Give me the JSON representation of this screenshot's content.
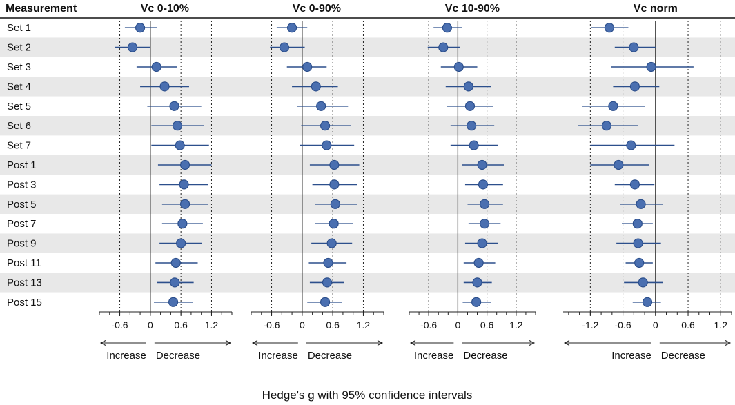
{
  "chart_data": {
    "type": "forest",
    "header_label": "Measurement",
    "rows": [
      "Set 1",
      "Set 2",
      "Set 3",
      "Set 4",
      "Set 5",
      "Set 6",
      "Set 7",
      "Post 1",
      "Post 3",
      "Post 5",
      "Post 7",
      "Post 9",
      "Post 11",
      "Post 13",
      "Post 15"
    ],
    "xlabel": "Hedge's g with 95% confidence intervals",
    "direction_labels": {
      "left": "Increase",
      "right": "Decrease"
    },
    "colors": {
      "point": "#4a6fb0",
      "point_edge": "#2c4f8c",
      "ci": "#2c4f8c",
      "band": "#e8e8e8"
    },
    "panels": [
      {
        "title": "Vc 0-10%",
        "xlim": [
          -1.0,
          1.6
        ],
        "ticks": [
          -0.6,
          0,
          0.6,
          1.2
        ],
        "tick_labels": [
          "-0.6",
          "0",
          "0.6",
          "1.2"
        ],
        "dotted_lines": [
          -0.6,
          0.6,
          1.2
        ],
        "points": [
          {
            "g": -0.2,
            "lo": -0.5,
            "hi": 0.13
          },
          {
            "g": -0.35,
            "lo": -0.7,
            "hi": 0.0
          },
          {
            "g": 0.12,
            "lo": -0.27,
            "hi": 0.52
          },
          {
            "g": 0.28,
            "lo": -0.2,
            "hi": 0.76
          },
          {
            "g": 0.47,
            "lo": -0.06,
            "hi": 1.0
          },
          {
            "g": 0.53,
            "lo": 0.02,
            "hi": 1.05
          },
          {
            "g": 0.58,
            "lo": 0.02,
            "hi": 1.15
          },
          {
            "g": 0.68,
            "lo": 0.15,
            "hi": 1.2
          },
          {
            "g": 0.66,
            "lo": 0.18,
            "hi": 1.13
          },
          {
            "g": 0.68,
            "lo": 0.23,
            "hi": 1.14
          },
          {
            "g": 0.63,
            "lo": 0.23,
            "hi": 1.03
          },
          {
            "g": 0.6,
            "lo": 0.18,
            "hi": 1.01
          },
          {
            "g": 0.5,
            "lo": 0.1,
            "hi": 0.93
          },
          {
            "g": 0.48,
            "lo": 0.13,
            "hi": 0.85
          },
          {
            "g": 0.45,
            "lo": 0.07,
            "hi": 0.83
          }
        ]
      },
      {
        "title": "Vc 0-90%",
        "xlim": [
          -1.0,
          1.6
        ],
        "ticks": [
          -0.6,
          0,
          0.6,
          1.2
        ],
        "tick_labels": [
          "-0.6",
          "0",
          "0.6",
          "1.2"
        ],
        "dotted_lines": [
          -0.6,
          0.6,
          1.2
        ],
        "points": [
          {
            "g": -0.2,
            "lo": -0.5,
            "hi": 0.1
          },
          {
            "g": -0.35,
            "lo": -0.63,
            "hi": 0.05
          },
          {
            "g": 0.1,
            "lo": -0.3,
            "hi": 0.48
          },
          {
            "g": 0.27,
            "lo": -0.2,
            "hi": 0.7
          },
          {
            "g": 0.37,
            "lo": -0.1,
            "hi": 0.9
          },
          {
            "g": 0.45,
            "lo": -0.02,
            "hi": 0.95
          },
          {
            "g": 0.48,
            "lo": -0.05,
            "hi": 1.02
          },
          {
            "g": 0.63,
            "lo": 0.15,
            "hi": 1.12
          },
          {
            "g": 0.63,
            "lo": 0.2,
            "hi": 1.08
          },
          {
            "g": 0.65,
            "lo": 0.25,
            "hi": 1.08
          },
          {
            "g": 0.62,
            "lo": 0.25,
            "hi": 1.0
          },
          {
            "g": 0.58,
            "lo": 0.18,
            "hi": 0.98
          },
          {
            "g": 0.51,
            "lo": 0.13,
            "hi": 0.87
          },
          {
            "g": 0.49,
            "lo": 0.15,
            "hi": 0.82
          },
          {
            "g": 0.45,
            "lo": 0.1,
            "hi": 0.78
          }
        ]
      },
      {
        "title": "Vc 10-90%",
        "xlim": [
          -1.0,
          1.6
        ],
        "ticks": [
          -0.6,
          0,
          0.6,
          1.2
        ],
        "tick_labels": [
          "-0.6",
          "0",
          "0.6",
          "1.2"
        ],
        "dotted_lines": [
          -0.6,
          0.6,
          1.2
        ],
        "points": [
          {
            "g": -0.22,
            "lo": -0.5,
            "hi": 0.08
          },
          {
            "g": -0.3,
            "lo": -0.62,
            "hi": 0.05
          },
          {
            "g": 0.02,
            "lo": -0.35,
            "hi": 0.4
          },
          {
            "g": 0.22,
            "lo": -0.25,
            "hi": 0.68
          },
          {
            "g": 0.25,
            "lo": -0.22,
            "hi": 0.73
          },
          {
            "g": 0.28,
            "lo": -0.15,
            "hi": 0.75
          },
          {
            "g": 0.33,
            "lo": -0.15,
            "hi": 0.82
          },
          {
            "g": 0.5,
            "lo": 0.08,
            "hi": 0.95
          },
          {
            "g": 0.52,
            "lo": 0.15,
            "hi": 0.93
          },
          {
            "g": 0.55,
            "lo": 0.2,
            "hi": 0.93
          },
          {
            "g": 0.55,
            "lo": 0.22,
            "hi": 0.88
          },
          {
            "g": 0.5,
            "lo": 0.15,
            "hi": 0.82
          },
          {
            "g": 0.43,
            "lo": 0.12,
            "hi": 0.77
          },
          {
            "g": 0.4,
            "lo": 0.12,
            "hi": 0.7
          },
          {
            "g": 0.38,
            "lo": 0.1,
            "hi": 0.68
          }
        ]
      },
      {
        "title": "Vc norm",
        "xlim": [
          -1.7,
          1.4
        ],
        "ticks": [
          -1.2,
          -0.6,
          0,
          0.6,
          1.2
        ],
        "tick_labels": [
          "-1.2",
          "-0.6",
          "0",
          "0.6",
          "1.2"
        ],
        "dotted_lines": [
          -1.2,
          -0.6,
          0.6,
          1.2
        ],
        "points": [
          {
            "g": -0.85,
            "lo": -1.18,
            "hi": -0.5
          },
          {
            "g": -0.4,
            "lo": -0.75,
            "hi": 0.0
          },
          {
            "g": -0.08,
            "lo": -0.82,
            "hi": 0.7
          },
          {
            "g": -0.38,
            "lo": -0.78,
            "hi": 0.07
          },
          {
            "g": -0.78,
            "lo": -1.35,
            "hi": -0.2
          },
          {
            "g": -0.9,
            "lo": -1.43,
            "hi": -0.32
          },
          {
            "g": -0.45,
            "lo": -1.2,
            "hi": 0.35
          },
          {
            "g": -0.68,
            "lo": -1.2,
            "hi": -0.12
          },
          {
            "g": -0.38,
            "lo": -0.75,
            "hi": -0.02
          },
          {
            "g": -0.27,
            "lo": -0.65,
            "hi": 0.13
          },
          {
            "g": -0.33,
            "lo": -0.62,
            "hi": -0.05
          },
          {
            "g": -0.32,
            "lo": -0.72,
            "hi": 0.1
          },
          {
            "g": -0.3,
            "lo": -0.55,
            "hi": -0.05
          },
          {
            "g": -0.23,
            "lo": -0.58,
            "hi": 0.13
          },
          {
            "g": -0.15,
            "lo": -0.42,
            "hi": 0.1
          }
        ]
      }
    ]
  }
}
